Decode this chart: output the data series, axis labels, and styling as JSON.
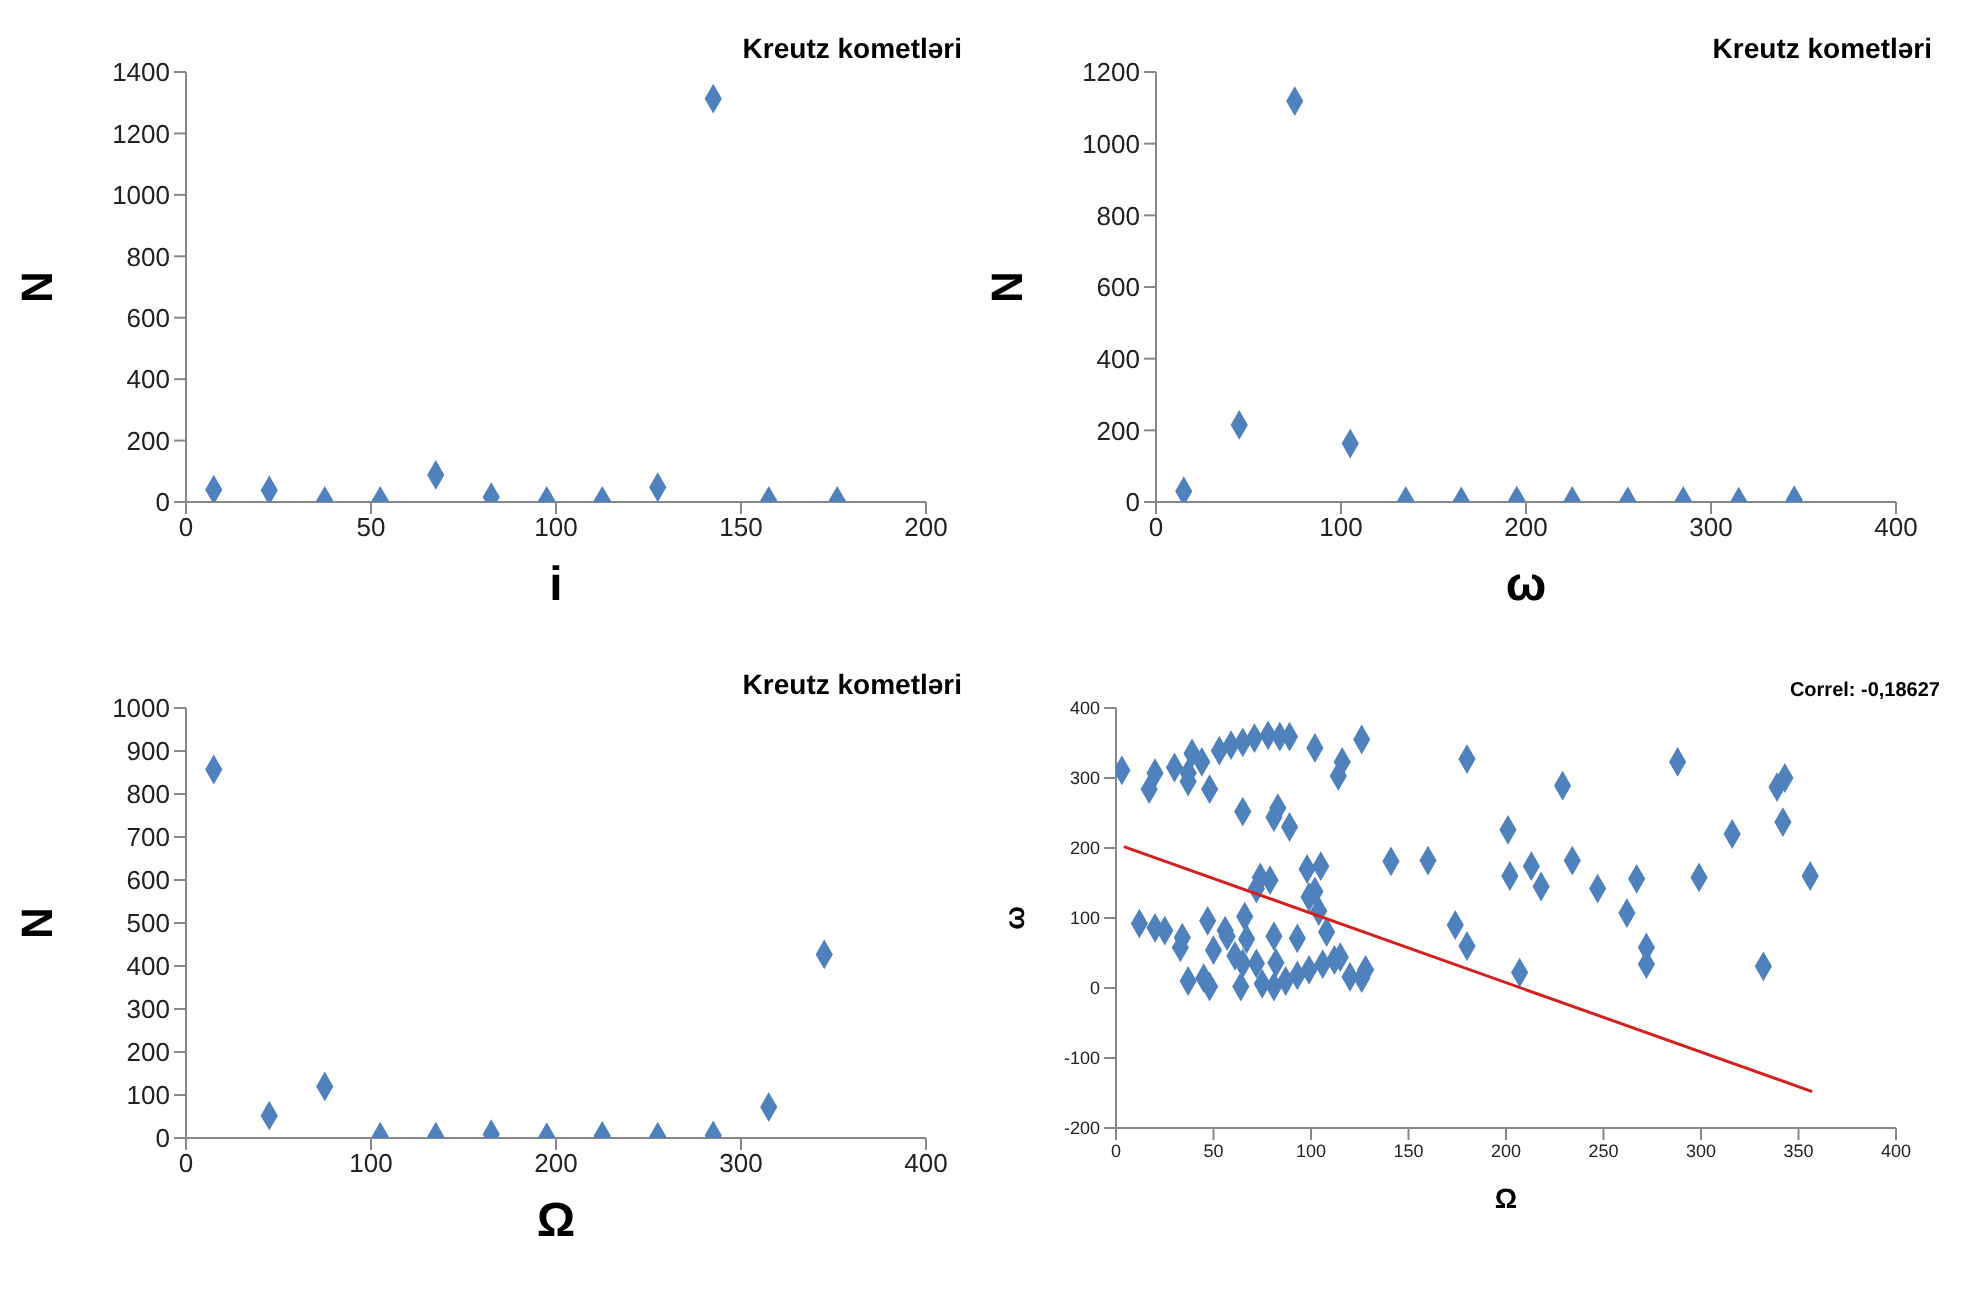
{
  "chart_data": [
    {
      "type": "scatter",
      "title": "Kreutz kometləri",
      "xlabel": "i",
      "ylabel": "N",
      "marker": "diamond",
      "color": "#4f81bd",
      "x": [
        7.5,
        22.5,
        37.5,
        52.5,
        67.5,
        82.5,
        97.5,
        112.5,
        127.5,
        142.5,
        157.5,
        176
      ],
      "values": [
        40,
        38,
        4,
        4,
        88,
        16,
        4,
        4,
        48,
        1313,
        4,
        4
      ],
      "xlim": [
        0,
        200
      ],
      "xticks": [
        0,
        50,
        100,
        150,
        200
      ],
      "ylim": [
        0,
        1400
      ],
      "yticks": [
        0,
        200,
        400,
        600,
        800,
        1000,
        1200,
        1400
      ]
    },
    {
      "type": "scatter",
      "title": "Kreutz kometləri",
      "xlabel": "ω",
      "ylabel": "N",
      "marker": "diamond",
      "color": "#4f81bd",
      "x": [
        15,
        45,
        75,
        105,
        135,
        165,
        195,
        225,
        255,
        285,
        315,
        345
      ],
      "values": [
        30,
        215,
        1119,
        163,
        3,
        2,
        4,
        3,
        2,
        3,
        1,
        5
      ],
      "xlim": [
        0,
        400
      ],
      "xticks": [
        0,
        100,
        200,
        300,
        400
      ],
      "ylim": [
        0,
        1200
      ],
      "yticks": [
        0,
        200,
        400,
        600,
        800,
        1000,
        1200
      ]
    },
    {
      "type": "scatter",
      "title": "Kreutz kometləri",
      "xlabel": "Ω",
      "ylabel": "N",
      "marker": "diamond",
      "color": "#4f81bd",
      "x": [
        15,
        45,
        75,
        105,
        135,
        165,
        195,
        225,
        255,
        285,
        315,
        345
      ],
      "values": [
        857,
        52,
        120,
        3,
        3,
        9,
        2,
        5,
        3,
        6,
        72,
        427
      ],
      "xlim": [
        0,
        400
      ],
      "xticks": [
        0,
        100,
        200,
        300,
        400
      ],
      "ylim": [
        0,
        1000
      ],
      "yticks": [
        0,
        100,
        200,
        300,
        400,
        500,
        600,
        700,
        800,
        900,
        1000
      ]
    },
    {
      "type": "scatter",
      "xlabel": "Ω",
      "ylabel": "ω",
      "annotations": [
        "Correl: -0,18627"
      ],
      "xlim": [
        0,
        400
      ],
      "xticks": [
        0,
        50,
        100,
        150,
        200,
        250,
        300,
        350,
        400
      ],
      "ylim": [
        -200,
        400
      ],
      "yticks": [
        -200,
        -100,
        0,
        100,
        200,
        300,
        400
      ],
      "series": [
        {
          "marker": "diamond",
          "color": "#4f81bd",
          "x": [
            3,
            17,
            20,
            30,
            37,
            39,
            44,
            48,
            53,
            59,
            65,
            71,
            78,
            84,
            89,
            37,
            102,
            116,
            114,
            126,
            65,
            83,
            81,
            89,
            74,
            79,
            72,
            98,
            105,
            99,
            102,
            104,
            12,
            20,
            25,
            34,
            33,
            47,
            56,
            57,
            67,
            50,
            61,
            65,
            72,
            66,
            37,
            45,
            48,
            64,
            81,
            93,
            82,
            108,
            75,
            81,
            87,
            93,
            99,
            106,
            112,
            115,
            120,
            126,
            128,
            141,
            160,
            174,
            180,
            180,
            201,
            202,
            207,
            213,
            218,
            229,
            234,
            247,
            262,
            267,
            272,
            272,
            288,
            299,
            316,
            332,
            339,
            343,
            342,
            356
          ],
          "values": [
            311,
            284,
            307,
            315,
            307,
            335,
            323,
            284,
            339,
            347,
            351,
            357,
            361,
            359,
            359,
            295,
            343,
            323,
            303,
            355,
            252,
            257,
            244,
            230,
            158,
            154,
            142,
            170,
            174,
            130,
            138,
            110,
            92,
            86,
            82,
            72,
            58,
            96,
            82,
            74,
            70,
            54,
            46,
            35,
            35,
            102,
            10,
            14,
            2,
            2,
            74,
            71,
            36,
            80,
            6,
            2,
            10,
            18,
            26,
            34,
            40,
            44,
            16,
            14,
            26,
            181,
            182,
            90,
            60,
            327,
            226,
            160,
            22,
            174,
            145,
            289,
            182,
            142,
            107,
            156,
            58,
            34,
            323,
            158,
            220,
            31,
            287,
            300,
            237,
            160
          ]
        },
        {
          "type": "line",
          "marker": "none",
          "color": "#d62020",
          "x": [
            4,
            357
          ],
          "values": [
            202,
            -148
          ]
        }
      ]
    }
  ]
}
